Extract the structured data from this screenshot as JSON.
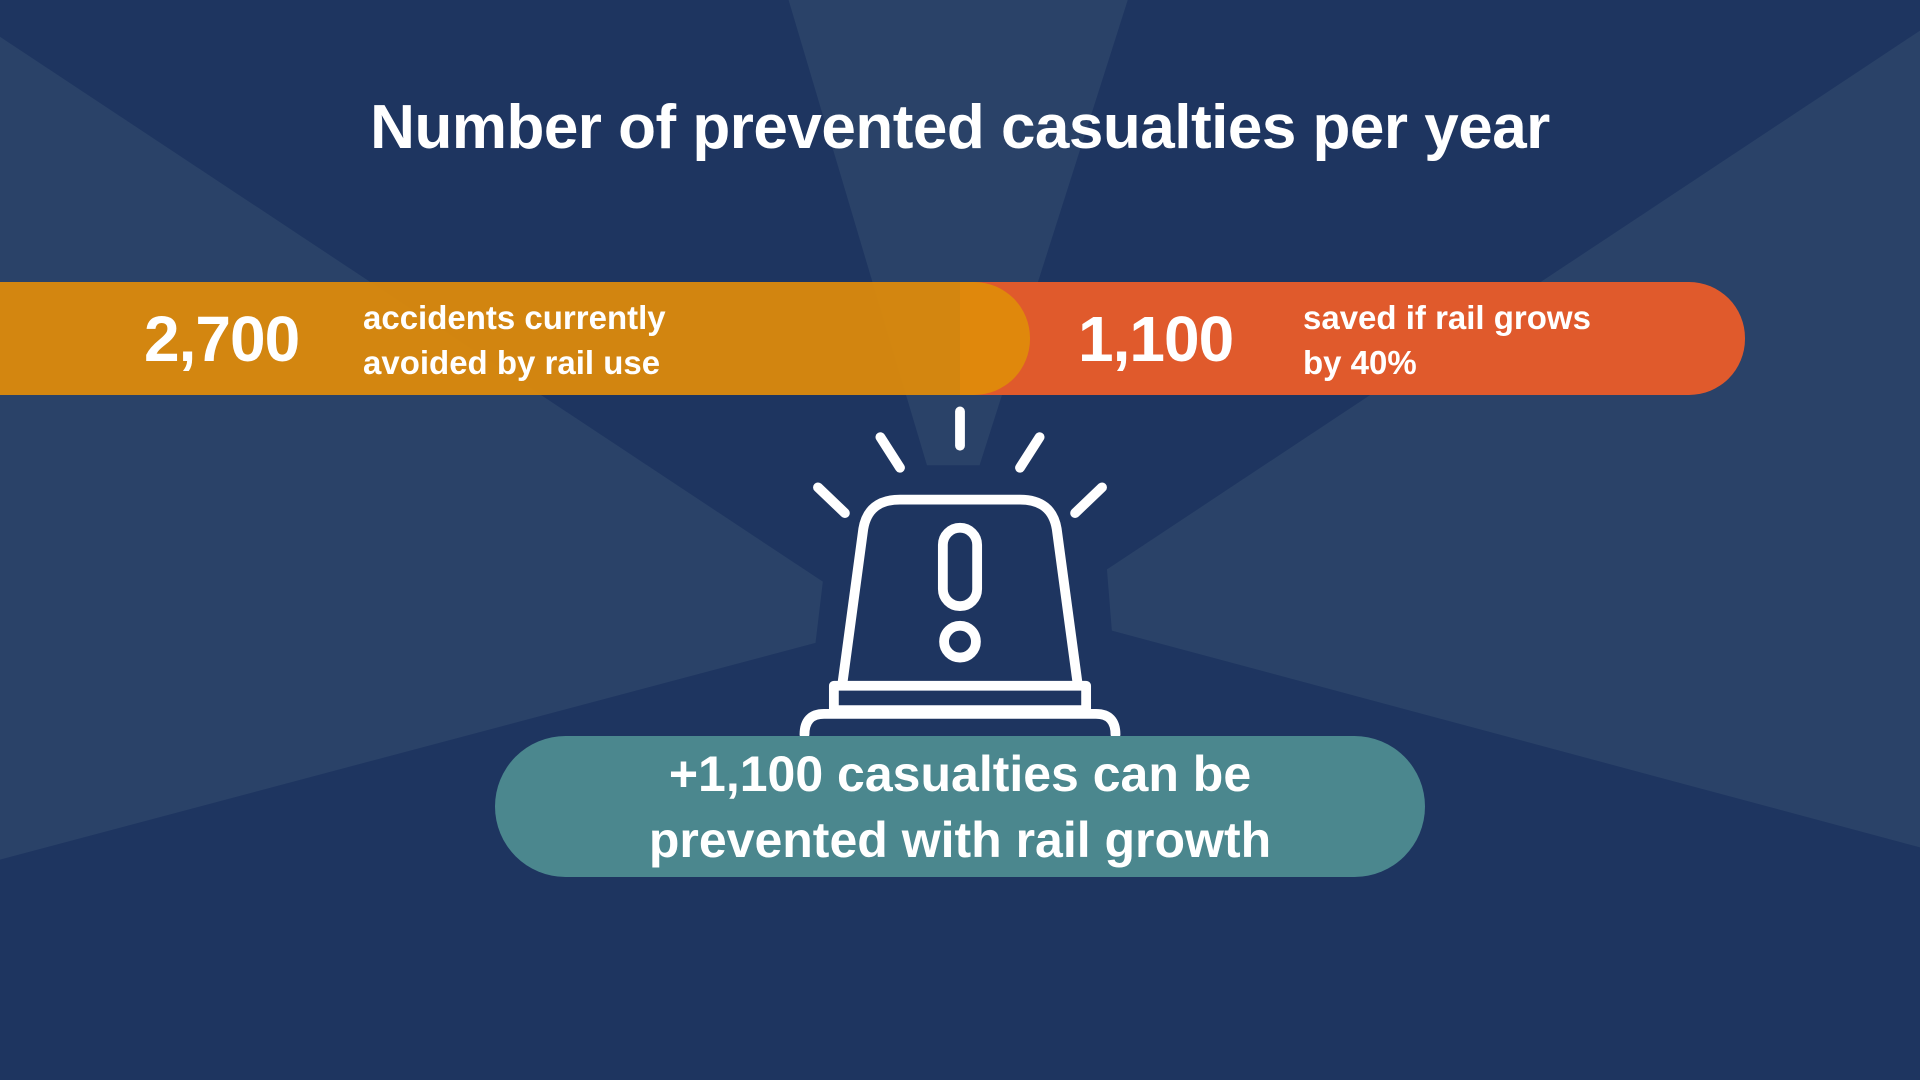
{
  "title": "Number of prevented casualties per year",
  "current": {
    "value": "2,700",
    "label_line1": "accidents currently",
    "label_line2": "avoided by rail use"
  },
  "growth": {
    "value": "1,100",
    "label_line1": "saved if rail grows",
    "label_line2": "by 40%"
  },
  "summary": {
    "line1": "+1,100 casualties can be",
    "line2": "prevented with rail growth"
  },
  "icon": "siren-alert-icon",
  "colors": {
    "background": "#1e3560",
    "rays": "#2a4268",
    "orange": "#e08c0a",
    "red": "#e05a2c",
    "teal": "#4b878e"
  }
}
